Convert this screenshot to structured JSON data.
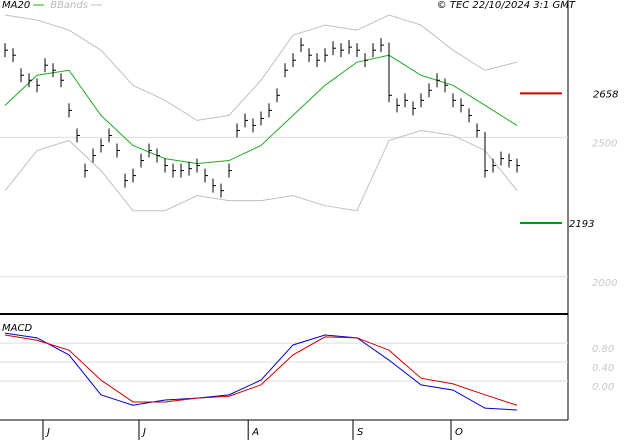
{
  "chart_data": [
    {
      "type": "ohlc",
      "source": "© TEC 22/10/2024 3:1 GMT",
      "color": "#000000",
      "xlim": [
        -0.625,
        70.375
      ],
      "xticks": [
        {
          "value": 4.75,
          "label": "J"
        },
        {
          "value": 16.75,
          "label": "J"
        },
        {
          "value": 30.4,
          "label": "A"
        },
        {
          "value": 43.5,
          "label": "S"
        },
        {
          "value": 55.75,
          "label": "O"
        }
      ],
      "ylim": [
        1870,
        2993
      ],
      "yticks": [
        2000,
        2500
      ],
      "grid": true,
      "high": [
        2838,
        2820,
        2748,
        2730,
        2712,
        2784,
        2766,
        2730,
        2622,
        2532,
        2406,
        2460,
        2496,
        2532,
        2478,
        2370,
        2388,
        2442,
        2478,
        2460,
        2424,
        2406,
        2406,
        2413,
        2424,
        2388,
        2352,
        2334,
        2406,
        2550,
        2586,
        2568,
        2593,
        2622,
        2676,
        2766,
        2802,
        2856,
        2820,
        2802,
        2820,
        2845,
        2838,
        2849,
        2838,
        2802,
        2838,
        2856,
        2840,
        2640,
        2658,
        2629,
        2658,
        2694,
        2730,
        2712,
        2658,
        2640,
        2604,
        2550,
        2520,
        2424,
        2449,
        2442,
        2424
      ],
      "low": [
        2788,
        2770,
        2698,
        2680,
        2662,
        2734,
        2716,
        2680,
        2572,
        2482,
        2356,
        2410,
        2446,
        2482,
        2428,
        2320,
        2338,
        2392,
        2428,
        2410,
        2374,
        2356,
        2356,
        2363,
        2374,
        2338,
        2302,
        2284,
        2356,
        2500,
        2536,
        2518,
        2543,
        2572,
        2626,
        2716,
        2752,
        2806,
        2770,
        2752,
        2770,
        2795,
        2788,
        2799,
        2788,
        2752,
        2788,
        2806,
        2626,
        2590,
        2608,
        2579,
        2608,
        2644,
        2680,
        2662,
        2608,
        2590,
        2554,
        2500,
        2356,
        2374,
        2399,
        2392,
        2374
      ],
      "close": [
        2813,
        2795,
        2723,
        2705,
        2687,
        2759,
        2741,
        2705,
        2597,
        2507,
        2381,
        2435,
        2471,
        2507,
        2453,
        2345,
        2363,
        2417,
        2453,
        2435,
        2399,
        2381,
        2381,
        2388,
        2399,
        2363,
        2327,
        2309,
        2381,
        2525,
        2561,
        2543,
        2568,
        2597,
        2651,
        2741,
        2777,
        2831,
        2795,
        2777,
        2795,
        2820,
        2813,
        2824,
        2813,
        2777,
        2813,
        2831,
        2651,
        2615,
        2633,
        2604,
        2633,
        2669,
        2705,
        2687,
        2633,
        2615,
        2579,
        2525,
        2381,
        2399,
        2424,
        2417,
        2399
      ],
      "series": [
        {
          "name": "MA20",
          "color": "#22aa22",
          "x": [
            0,
            4,
            8,
            12,
            16,
            20,
            24,
            28,
            32,
            36,
            40,
            44,
            48,
            52,
            56,
            60,
            64
          ],
          "values": [
            2615,
            2723,
            2741,
            2579,
            2471,
            2424,
            2406,
            2417,
            2471,
            2579,
            2687,
            2770,
            2795,
            2723,
            2687,
            2615,
            2543
          ]
        },
        {
          "name": "BBands",
          "color": "#c0c0c0",
          "x": [
            0,
            4,
            8,
            12,
            16,
            20,
            24,
            28,
            32,
            36,
            40,
            44,
            48,
            52,
            56,
            60,
            64
          ],
          "upper": [
            2939,
            2921,
            2885,
            2813,
            2687,
            2633,
            2561,
            2579,
            2705,
            2867,
            2903,
            2885,
            2939,
            2903,
            2813,
            2741,
            2770
          ],
          "lower": [
            2309,
            2453,
            2489,
            2381,
            2237,
            2237,
            2291,
            2273,
            2273,
            2291,
            2255,
            2237,
            2489,
            2525,
            2507,
            2453,
            2309
          ]
        }
      ],
      "reference_lines": [
        {
          "value": 2658,
          "color": "#cc0000"
        },
        {
          "value": 2193,
          "color": "#009900"
        }
      ]
    },
    {
      "type": "line",
      "title": "MACD",
      "xlim": [
        -0.625,
        70.375
      ],
      "ylim": [
        -0.82,
        1.37
      ],
      "yticks": [
        {
          "value": 0.8,
          "label": "0.80"
        },
        {
          "value": 0.4,
          "label": "0.40"
        },
        {
          "value": 0,
          "label": "0.00"
        }
      ],
      "grid": true,
      "series": [
        {
          "color": "#0000cc",
          "x": [
            0,
            4,
            8,
            12,
            16,
            20,
            24,
            28,
            32,
            36,
            40,
            44,
            48,
            52,
            56,
            60,
            64
          ],
          "values": [
            1.01,
            0.91,
            0.55,
            -0.29,
            -0.51,
            -0.4,
            -0.36,
            -0.29,
            0.02,
            0.76,
            0.97,
            0.91,
            0.44,
            -0.08,
            -0.19,
            -0.57,
            -0.61
          ]
        },
        {
          "color": "#cc0000",
          "x": [
            0,
            4,
            8,
            12,
            16,
            20,
            24,
            28,
            32,
            36,
            40,
            44,
            48,
            52,
            56,
            60,
            64
          ],
          "values": [
            0.97,
            0.86,
            0.65,
            0.02,
            -0.44,
            -0.44,
            -0.36,
            -0.32,
            -0.08,
            0.55,
            0.93,
            0.91,
            0.65,
            0.06,
            -0.06,
            -0.29,
            -0.51
          ]
        }
      ]
    }
  ]
}
